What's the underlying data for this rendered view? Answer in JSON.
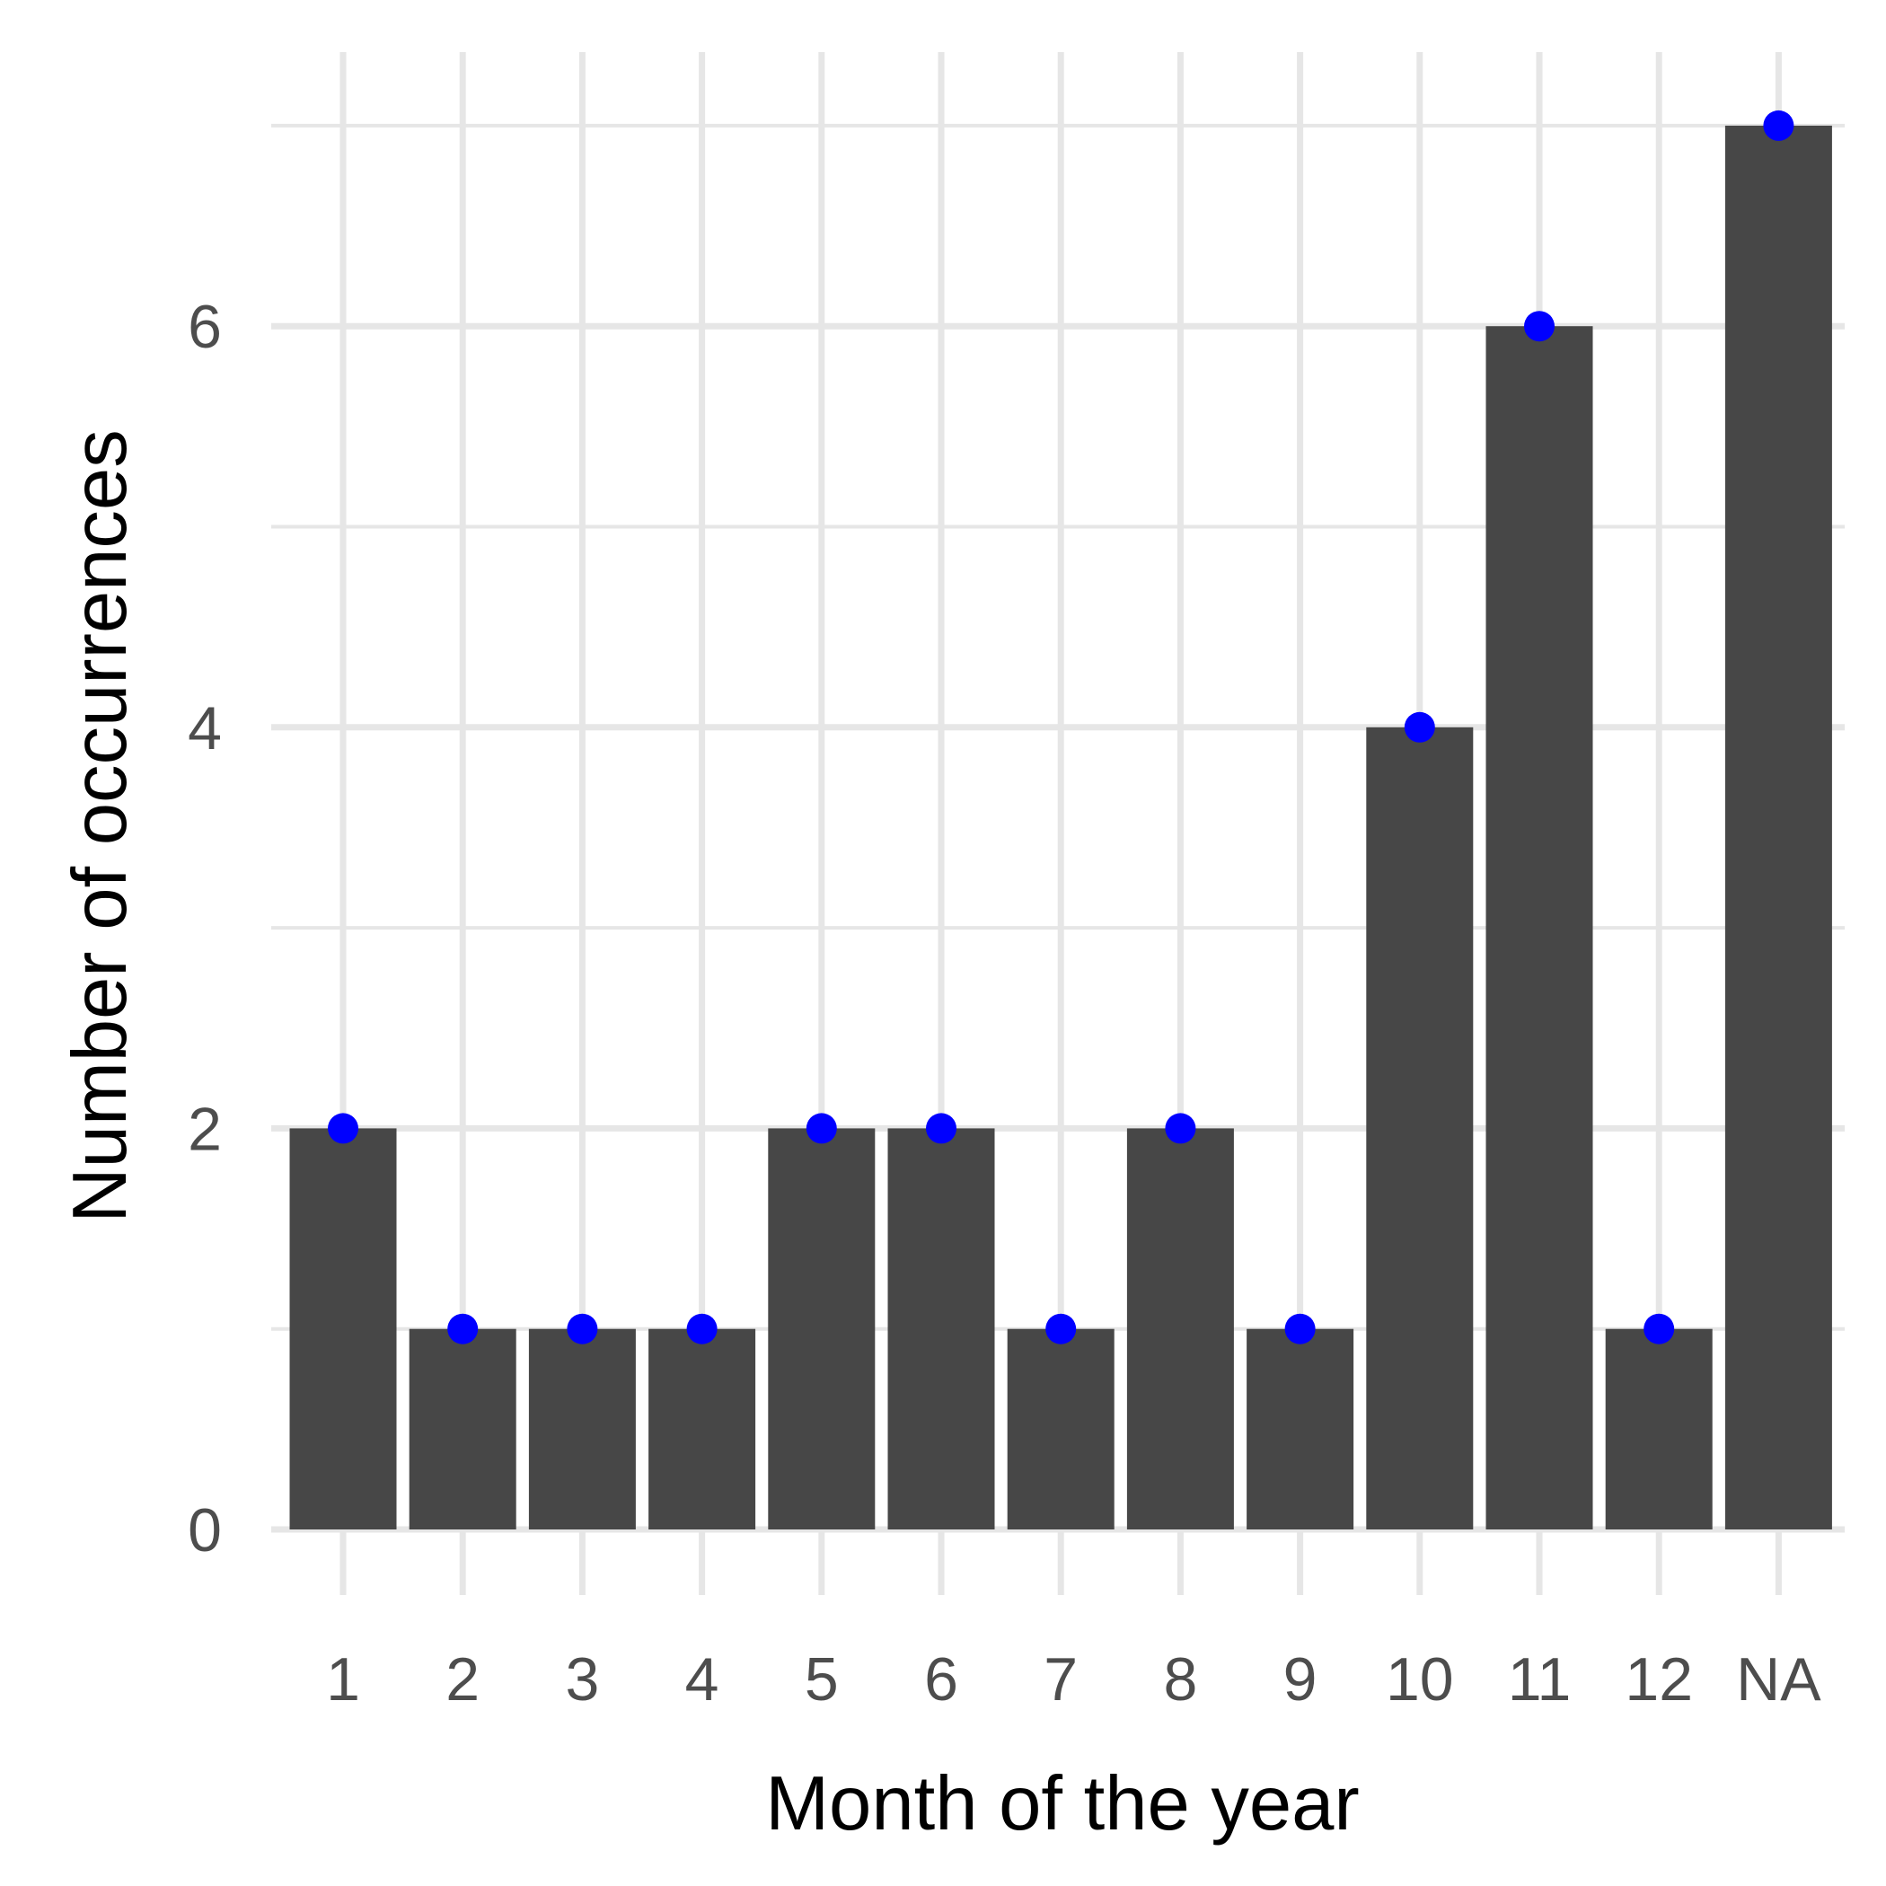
{
  "chart_data": {
    "type": "bar",
    "title": "",
    "xlabel": "Month of the year",
    "ylabel": "Number of occurrences",
    "categories": [
      "1",
      "2",
      "3",
      "4",
      "5",
      "6",
      "7",
      "8",
      "9",
      "10",
      "11",
      "12",
      "NA"
    ],
    "values": [
      2,
      1,
      1,
      1,
      2,
      2,
      1,
      2,
      1,
      4,
      6,
      1,
      7
    ],
    "point_values": [
      2,
      1,
      1,
      1,
      2,
      2,
      1,
      2,
      1,
      4,
      6,
      1,
      7
    ],
    "ylim": [
      0,
      7
    ],
    "y_ticks": [
      "0",
      "2",
      "4",
      "6"
    ],
    "grid": true,
    "legend": "none"
  },
  "colors": {
    "bar": "#474747",
    "point": "#0000ff",
    "grid": "#e6e6e6",
    "background": "#ffffff"
  }
}
